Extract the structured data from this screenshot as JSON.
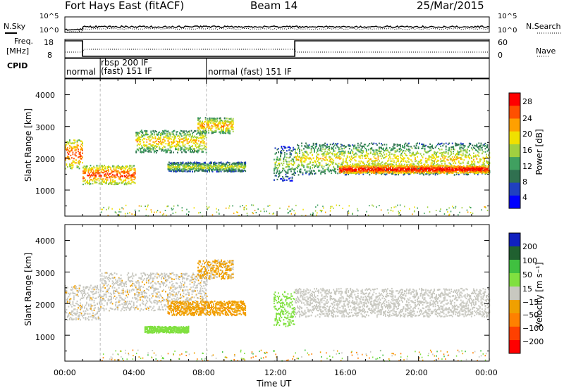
{
  "header": {
    "title": "Fort Hays East (fitACF)",
    "beam": "Beam 14",
    "date": "25/Mar/2015"
  },
  "top_panels": {
    "nsky_label": "N.Sky",
    "nsky_ticks": [
      "10^5",
      "10^0"
    ],
    "nsearch_label": "N.Search",
    "nsearch_ticks_right": [
      "10^5",
      "10^0"
    ],
    "freq_label": "Freq.",
    "freq_unit": "[MHz]",
    "freq_ticks": [
      "18",
      "8"
    ],
    "nave_label": "Nave",
    "nave_ticks_right": [
      "60",
      "0"
    ],
    "cpid_label": "CPID",
    "cpid_segments": [
      {
        "label": "normal",
        "start_h": 0.0
      },
      {
        "label": "rbsp 200 IF",
        "label2": "(fast) 151 IF",
        "start_h": 2.0
      },
      {
        "label": "normal (fast) 151 IF",
        "start_h": 8.0
      }
    ],
    "freq_trace": [
      {
        "start_h": 0.0,
        "end_h": 1.0,
        "mhz": 18
      },
      {
        "start_h": 1.0,
        "end_h": 13.0,
        "mhz": 8
      },
      {
        "start_h": 13.0,
        "end_h": 24.0,
        "mhz": 18
      }
    ]
  },
  "panels": {
    "power": {
      "ylabel": "Slant Range [km]",
      "yticks": [
        "4000",
        "3000",
        "2000",
        "1000"
      ],
      "colorbar_label": "Power [dB]",
      "colorbar_ticks": [
        "28",
        "24",
        "20",
        "16",
        "12",
        "8",
        "4"
      ]
    },
    "velocity": {
      "ylabel": "Slant Range [km]",
      "yticks": [
        "4000",
        "3000",
        "2000",
        "1000"
      ],
      "colorbar_label": "Velocity [m s⁻¹]",
      "colorbar_ticks": [
        "200",
        "100",
        "50",
        "15",
        "−15",
        "−50",
        "−100",
        "−200"
      ]
    }
  },
  "xaxis": {
    "label": "Time UT",
    "ticks": [
      "00:00",
      "04:00",
      "08:00",
      "12:00",
      "16:00",
      "20:00",
      "00:00"
    ]
  },
  "colors": {
    "power_scale": [
      "#0000ff",
      "#2040c0",
      "#307050",
      "#40a060",
      "#a0d040",
      "#f0e000",
      "#ffa000",
      "#ff5000",
      "#ff0000"
    ],
    "velocity_scale": [
      "#1020c0",
      "#206030",
      "#40c040",
      "#80e040",
      "#c8c8c0",
      "#f0a000",
      "#ff8000",
      "#ff4000",
      "#ff0000"
    ]
  },
  "chart_data": [
    {
      "type": "heatmap",
      "title": "Power",
      "xlabel": "Time UT",
      "ylabel": "Slant Range [km]",
      "xlim": [
        0,
        24
      ],
      "ylim": [
        180,
        4500
      ],
      "colorbar": "Power [dB]",
      "clim": [
        0,
        30
      ],
      "bands": [
        {
          "t": [
            0.0,
            1.0
          ],
          "r": [
            1700,
            2600
          ],
          "p": 22
        },
        {
          "t": [
            1.0,
            4.0
          ],
          "r": [
            1200,
            1800
          ],
          "p": 22
        },
        {
          "t": [
            4.0,
            8.0
          ],
          "r": [
            2200,
            2900
          ],
          "p": 16
        },
        {
          "t": [
            7.5,
            9.5
          ],
          "r": [
            2800,
            3300
          ],
          "p": 18
        },
        {
          "t": [
            5.8,
            10.2
          ],
          "r": [
            1600,
            1900
          ],
          "p": 12
        },
        {
          "t": [
            11.8,
            13.0
          ],
          "r": [
            1300,
            2400
          ],
          "p": 10
        },
        {
          "t": [
            13.0,
            24.0
          ],
          "r": [
            1500,
            2500
          ],
          "p": 14
        },
        {
          "t": [
            15.5,
            24.0
          ],
          "r": [
            1550,
            1800
          ],
          "p": 26
        }
      ]
    },
    {
      "type": "heatmap",
      "title": "Velocity",
      "xlabel": "Time UT",
      "ylabel": "Slant Range [km]",
      "xlim": [
        0,
        24
      ],
      "ylim": [
        180,
        4500
      ],
      "colorbar": "Velocity [m s⁻¹]",
      "clim": [
        -250,
        250
      ],
      "bands": [
        {
          "t": [
            0.0,
            2.0
          ],
          "r": [
            1500,
            2600
          ],
          "v": -20
        },
        {
          "t": [
            2.0,
            8.0
          ],
          "r": [
            1800,
            3000
          ],
          "v": -20
        },
        {
          "t": [
            7.5,
            9.5
          ],
          "r": [
            2800,
            3400
          ],
          "v": -40
        },
        {
          "t": [
            5.8,
            10.2
          ],
          "r": [
            1650,
            2100
          ],
          "v": -80
        },
        {
          "t": [
            11.8,
            13.0
          ],
          "r": [
            1300,
            2400
          ],
          "v": 60
        },
        {
          "t": [
            13.0,
            24.0
          ],
          "r": [
            1600,
            2500
          ],
          "v": 0
        },
        {
          "t": [
            4.5,
            7.0
          ],
          "r": [
            1100,
            1300
          ],
          "v": 60
        }
      ]
    }
  ]
}
